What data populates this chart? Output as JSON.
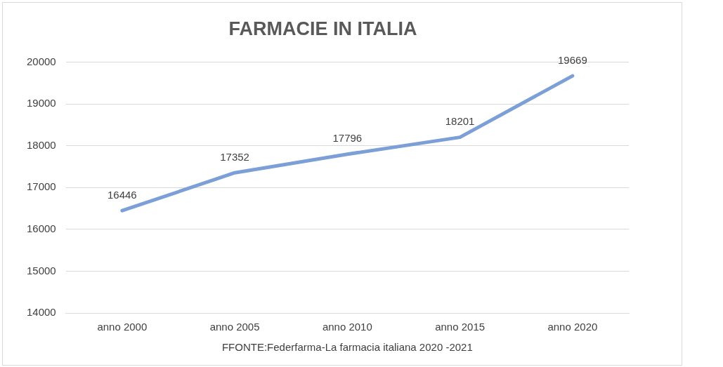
{
  "chart_data": {
    "type": "line",
    "title": "FARMACIE IN ITALIA",
    "categories": [
      "anno 2000",
      "anno 2005",
      "anno 2010",
      "anno 2015",
      "anno 2020"
    ],
    "series": [
      {
        "color": "#7b9fd6",
        "values": [
          16446,
          17352,
          17796,
          18201,
          19669
        ]
      }
    ],
    "ylim": [
      14000,
      20000
    ],
    "yticks": [
      14000,
      15000,
      16000,
      17000,
      18000,
      19000,
      20000
    ],
    "grid": "y",
    "legend": false,
    "marker": "none",
    "line_style": "solid",
    "data_labels": true,
    "annotations": [
      "FFONTE:Federfarma-La farmacia italiana 2020 -2021"
    ]
  }
}
